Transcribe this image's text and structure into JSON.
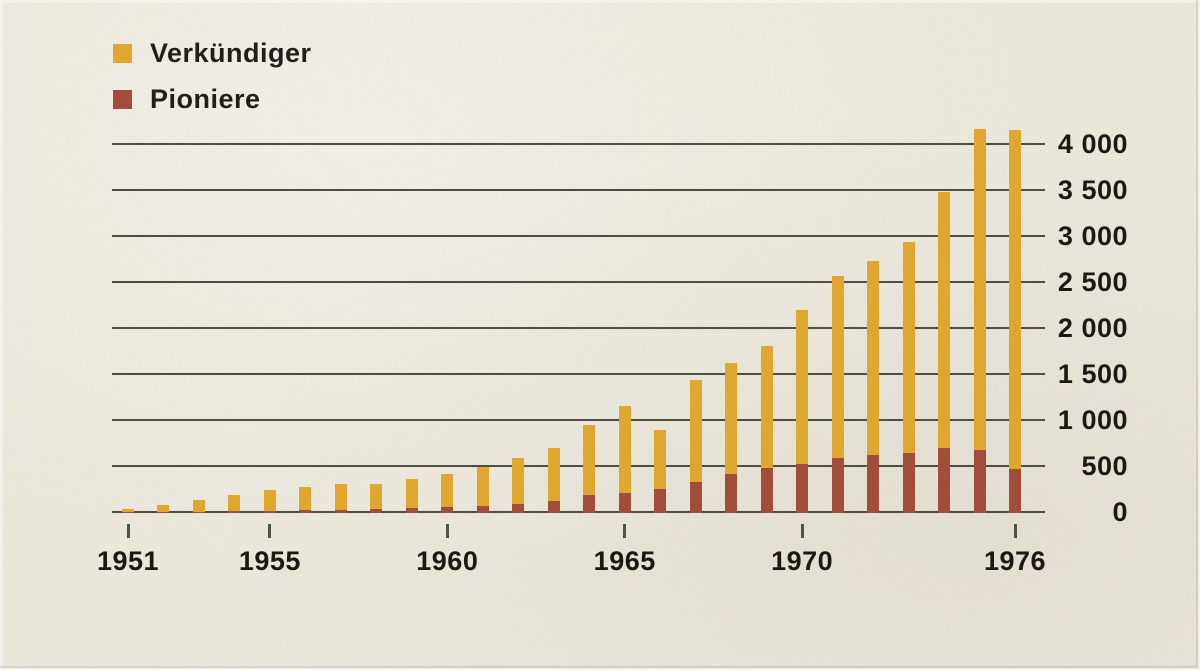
{
  "legend": {
    "items": [
      {
        "label": "Verkündiger",
        "color": "#e1a72c"
      },
      {
        "label": "Pioniere",
        "color": "#a14937"
      }
    ]
  },
  "chart_data": {
    "type": "bar",
    "stacked": true,
    "title": "",
    "xlabel": "",
    "ylabel": "",
    "x": [
      1951,
      1952,
      1953,
      1954,
      1955,
      1956,
      1957,
      1958,
      1959,
      1960,
      1961,
      1962,
      1963,
      1964,
      1965,
      1966,
      1967,
      1968,
      1969,
      1970,
      1971,
      1972,
      1973,
      1974,
      1975,
      1976
    ],
    "series": [
      {
        "name": "Verkündiger",
        "color": "#e1a72c",
        "values": [
          35,
          80,
          130,
          190,
          235,
          270,
          305,
          300,
          360,
          410,
          490,
          590,
          700,
          945,
          1150,
          890,
          1440,
          1615,
          1800,
          2200,
          2570,
          2730,
          2940,
          3480,
          4160,
          4150
        ],
        "note": "total bar height = publishers"
      },
      {
        "name": "Pioniere",
        "color": "#a14937",
        "values": [
          8,
          10,
          15,
          20,
          25,
          30,
          35,
          45,
          50,
          60,
          80,
          100,
          130,
          200,
          220,
          260,
          340,
          420,
          490,
          530,
          600,
          625,
          650,
          710,
          690,
          480
        ],
        "note": "bottom overlapping segment = pioneers"
      }
    ],
    "x_ticks": [
      1951,
      1955,
      1960,
      1965,
      1970,
      1976
    ],
    "x_tick_labels": [
      "1951",
      "1955",
      "1960",
      "1965",
      "1970",
      "1976"
    ],
    "y_ticks": [
      0,
      500,
      1000,
      1500,
      2000,
      2500,
      3000,
      3500,
      4000
    ],
    "y_tick_labels": [
      "0",
      "500",
      "1 000",
      "1 500",
      "2 000",
      "2 500",
      "3 000",
      "3 500",
      "4 000"
    ],
    "ylim": [
      0,
      4200
    ],
    "grid": true,
    "gridline_color": "#4b4a40",
    "legend_position": "top-left",
    "background_color": "#ece8dc"
  }
}
